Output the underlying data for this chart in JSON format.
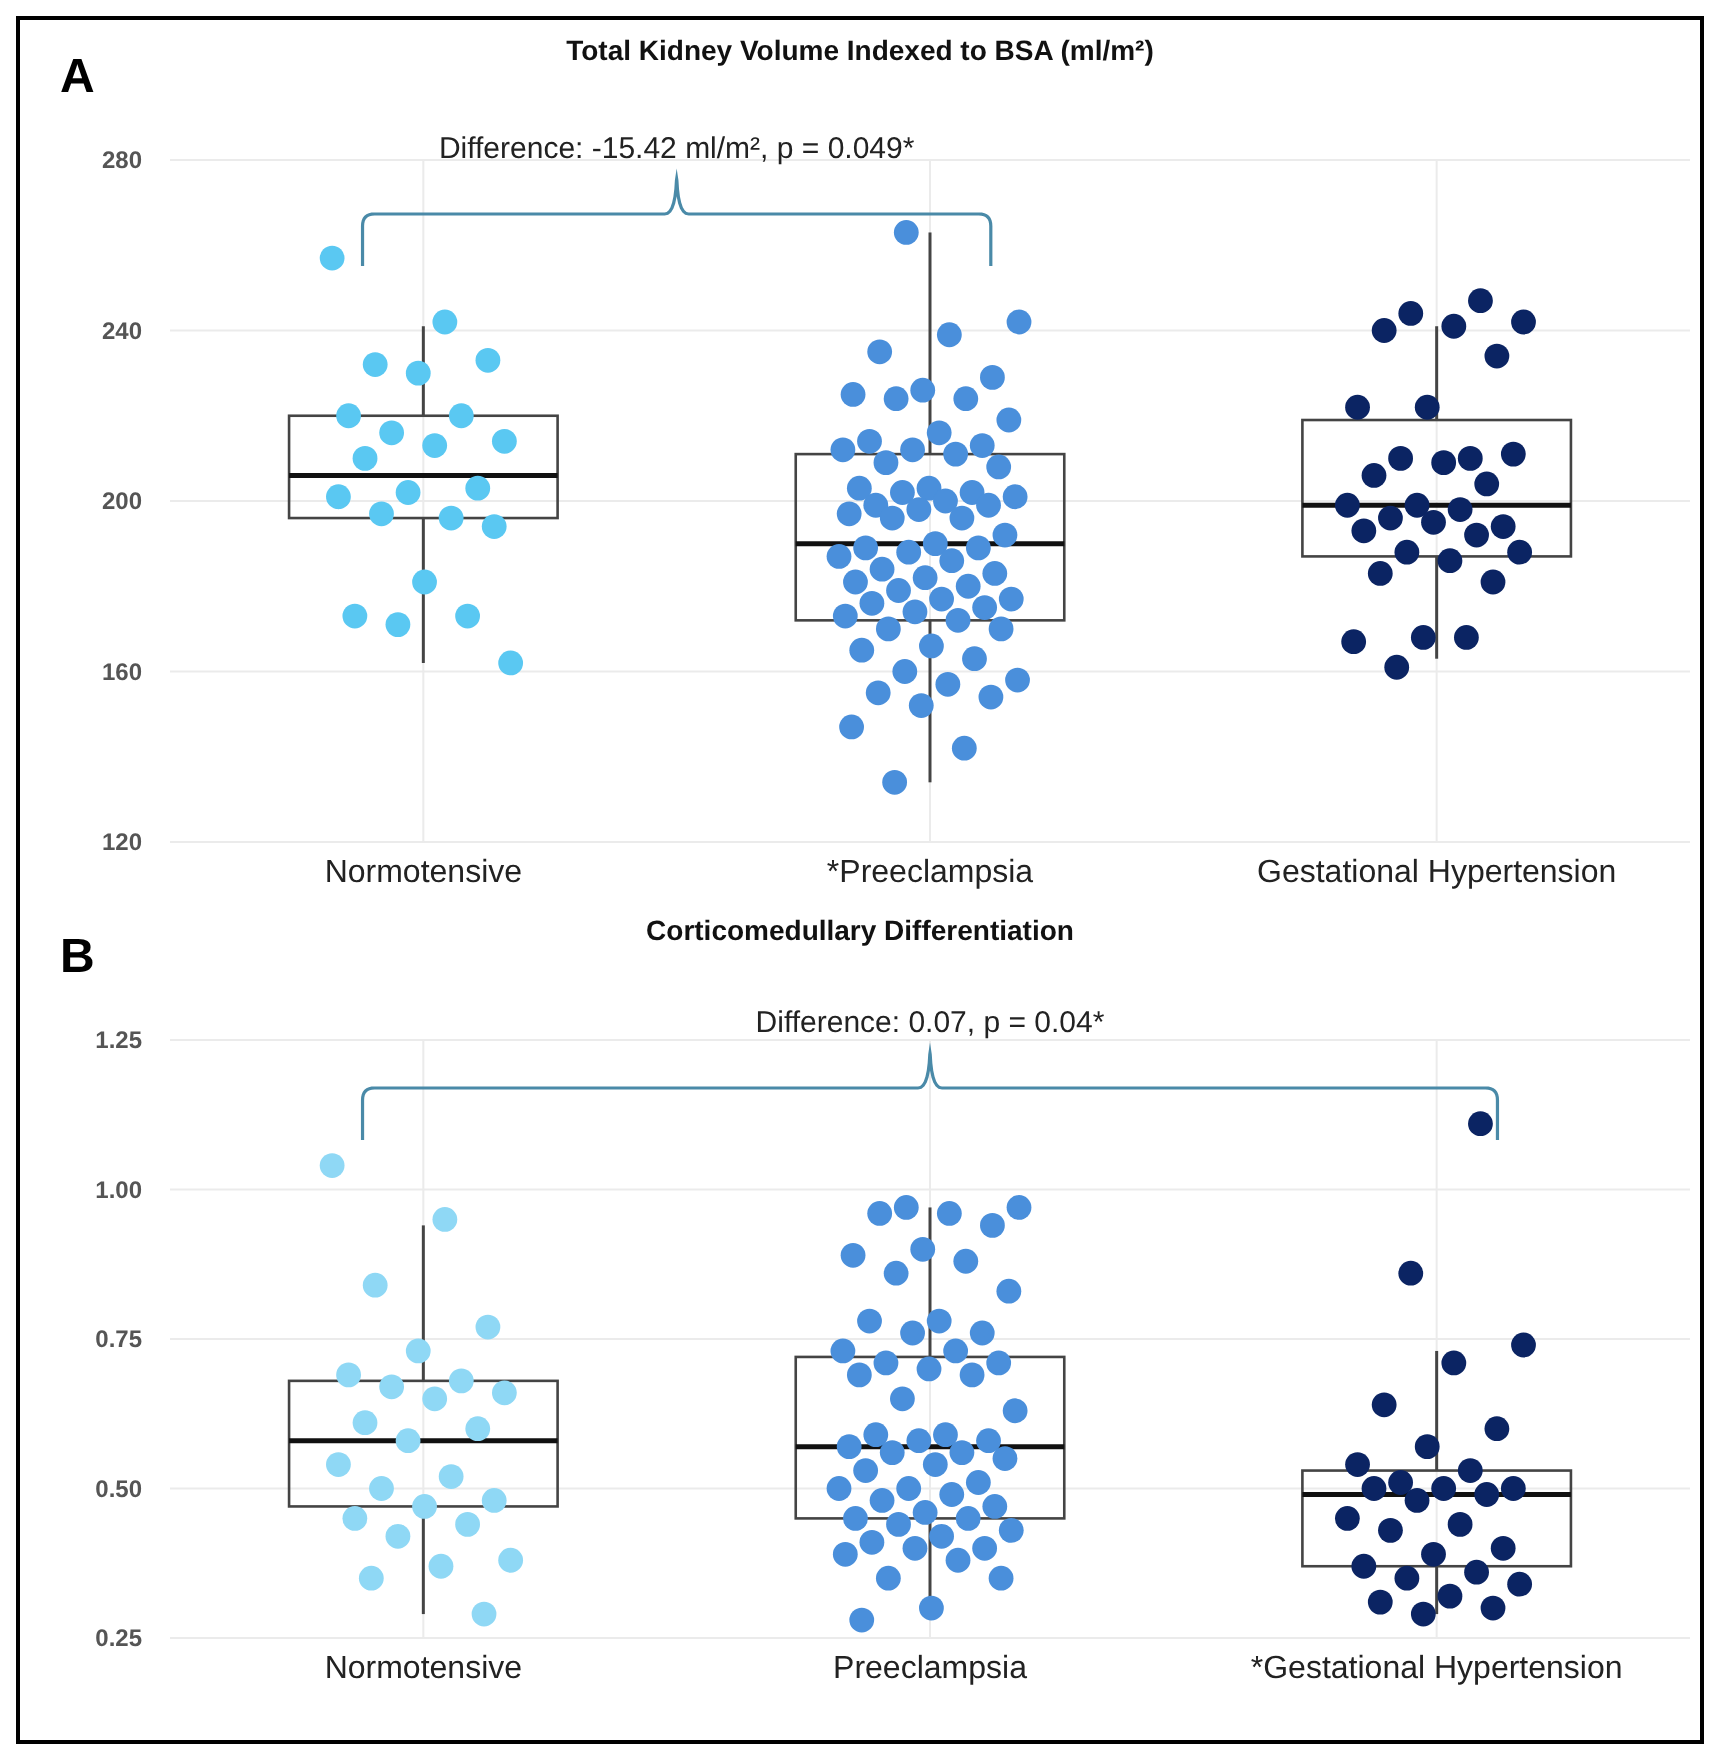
{
  "chart_data": [
    {
      "type": "box",
      "title": "Total Kidney Volume Indexed to BSA (ml/m²)",
      "categories": [
        "Normotensive",
        "*Preeclampsia",
        "Gestational Hypertension"
      ],
      "boxes": [
        {
          "low": 162,
          "q1": 196,
          "median": 206,
          "q3": 220,
          "high": 241
        },
        {
          "low": 134,
          "q1": 172,
          "median": 190,
          "q3": 211,
          "high": 263
        },
        {
          "low": 163,
          "q1": 187,
          "median": 199,
          "q3": 219,
          "high": 241
        }
      ],
      "series": [
        {
          "type": "scatter",
          "color": "#5ac8f2",
          "x": [
            "Normotensive",
            "Normotensive",
            "Normotensive",
            "Normotensive",
            "Normotensive",
            "Normotensive",
            "Normotensive",
            "Normotensive",
            "Normotensive",
            "Normotensive",
            "Normotensive",
            "Normotensive",
            "Normotensive",
            "Normotensive",
            "Normotensive",
            "Normotensive",
            "Normotensive",
            "Normotensive",
            "Normotensive",
            "Normotensive",
            "Normotensive",
            "Normotensive"
          ],
          "values": [
            257,
            242,
            232,
            233,
            230,
            220,
            220,
            216,
            214,
            213,
            210,
            203,
            202,
            201,
            196,
            197,
            194,
            181,
            173,
            173,
            171,
            162
          ]
        },
        {
          "type": "scatter",
          "color": "#4a8fdb",
          "x": [
            "*Preeclampsia",
            "*Preeclampsia",
            "*Preeclampsia",
            "*Preeclampsia",
            "*Preeclampsia",
            "*Preeclampsia",
            "*Preeclampsia",
            "*Preeclampsia",
            "*Preeclampsia",
            "*Preeclampsia",
            "*Preeclampsia",
            "*Preeclampsia",
            "*Preeclampsia",
            "*Preeclampsia",
            "*Preeclampsia",
            "*Preeclampsia",
            "*Preeclampsia",
            "*Preeclampsia",
            "*Preeclampsia",
            "*Preeclampsia",
            "*Preeclampsia",
            "*Preeclampsia",
            "*Preeclampsia",
            "*Preeclampsia",
            "*Preeclampsia",
            "*Preeclampsia",
            "*Preeclampsia",
            "*Preeclampsia",
            "*Preeclampsia",
            "*Preeclampsia",
            "*Preeclampsia",
            "*Preeclampsia",
            "*Preeclampsia",
            "*Preeclampsia",
            "*Preeclampsia",
            "*Preeclampsia",
            "*Preeclampsia",
            "*Preeclampsia",
            "*Preeclampsia",
            "*Preeclampsia",
            "*Preeclampsia",
            "*Preeclampsia",
            "*Preeclampsia",
            "*Preeclampsia",
            "*Preeclampsia",
            "*Preeclampsia",
            "*Preeclampsia",
            "*Preeclampsia",
            "*Preeclampsia",
            "*Preeclampsia",
            "*Preeclampsia",
            "*Preeclampsia",
            "*Preeclampsia",
            "*Preeclampsia",
            "*Preeclampsia",
            "*Preeclampsia",
            "*Preeclampsia",
            "*Preeclampsia",
            "*Preeclampsia",
            "*Preeclampsia",
            "*Preeclampsia",
            "*Preeclampsia",
            "*Preeclampsia",
            "*Preeclampsia"
          ],
          "values": [
            263,
            242,
            239,
            235,
            229,
            226,
            225,
            224,
            224,
            219,
            216,
            214,
            213,
            212,
            212,
            211,
            209,
            208,
            203,
            203,
            202,
            202,
            201,
            200,
            199,
            199,
            198,
            197,
            196,
            196,
            192,
            190,
            189,
            189,
            188,
            187,
            186,
            184,
            183,
            182,
            181,
            180,
            179,
            177,
            177,
            176,
            175,
            174,
            173,
            172,
            170,
            170,
            166,
            165,
            163,
            160,
            158,
            157,
            155,
            154,
            152,
            147,
            142,
            134
          ]
        },
        {
          "type": "scatter",
          "color": "#0b2463",
          "x": [
            "Gestational Hypertension",
            "Gestational Hypertension",
            "Gestational Hypertension",
            "Gestational Hypertension",
            "Gestational Hypertension",
            "Gestational Hypertension",
            "Gestational Hypertension",
            "Gestational Hypertension",
            "Gestational Hypertension",
            "Gestational Hypertension",
            "Gestational Hypertension",
            "Gestational Hypertension",
            "Gestational Hypertension",
            "Gestational Hypertension",
            "Gestational Hypertension",
            "Gestational Hypertension",
            "Gestational Hypertension",
            "Gestational Hypertension",
            "Gestational Hypertension",
            "Gestational Hypertension",
            "Gestational Hypertension",
            "Gestational Hypertension",
            "Gestational Hypertension",
            "Gestational Hypertension",
            "Gestational Hypertension",
            "Gestational Hypertension",
            "Gestational Hypertension",
            "Gestational Hypertension",
            "Gestational Hypertension",
            "Gestational Hypertension",
            "Gestational Hypertension"
          ],
          "values": [
            247,
            244,
            242,
            241,
            240,
            234,
            222,
            222,
            210,
            210,
            211,
            209,
            206,
            204,
            199,
            199,
            198,
            196,
            194,
            195,
            193,
            192,
            188,
            188,
            186,
            183,
            181,
            168,
            167,
            168,
            161
          ]
        }
      ],
      "ylim": [
        120,
        280
      ],
      "yticks": [
        120,
        160,
        200,
        240,
        280
      ],
      "grid": true,
      "annotations": [
        "A",
        "Difference: -15.42 ml/m², p = 0.049*"
      ]
    },
    {
      "type": "box",
      "title": "Corticomedullary Differentiation",
      "categories": [
        "Normotensive",
        "Preeclampsia",
        "*Gestational Hypertension"
      ],
      "boxes": [
        {
          "low": 0.29,
          "q1": 0.47,
          "median": 0.58,
          "q3": 0.68,
          "high": 0.94
        },
        {
          "low": 0.28,
          "q1": 0.45,
          "median": 0.57,
          "q3": 0.72,
          "high": 0.97
        },
        {
          "low": 0.29,
          "q1": 0.37,
          "median": 0.49,
          "q3": 0.53,
          "high": 0.73
        }
      ],
      "series": [
        {
          "type": "scatter",
          "color": "#8fd8f5",
          "x": [
            "Normotensive",
            "Normotensive",
            "Normotensive",
            "Normotensive",
            "Normotensive",
            "Normotensive",
            "Normotensive",
            "Normotensive",
            "Normotensive",
            "Normotensive",
            "Normotensive",
            "Normotensive",
            "Normotensive",
            "Normotensive",
            "Normotensive",
            "Normotensive",
            "Normotensive",
            "Normotensive",
            "Normotensive",
            "Normotensive",
            "Normotensive",
            "Normotensive",
            "Normotensive",
            "Normotensive",
            "Normotensive"
          ],
          "values": [
            1.04,
            0.95,
            0.84,
            0.77,
            0.73,
            0.69,
            0.68,
            0.67,
            0.66,
            0.65,
            0.61,
            0.6,
            0.58,
            0.54,
            0.52,
            0.5,
            0.48,
            0.47,
            0.45,
            0.44,
            0.42,
            0.38,
            0.37,
            0.35,
            0.29
          ]
        },
        {
          "type": "scatter",
          "color": "#4a8fdb",
          "x": [
            "Preeclampsia",
            "Preeclampsia",
            "Preeclampsia",
            "Preeclampsia",
            "Preeclampsia",
            "Preeclampsia",
            "Preeclampsia",
            "Preeclampsia",
            "Preeclampsia",
            "Preeclampsia",
            "Preeclampsia",
            "Preeclampsia",
            "Preeclampsia",
            "Preeclampsia",
            "Preeclampsia",
            "Preeclampsia",
            "Preeclampsia",
            "Preeclampsia",
            "Preeclampsia",
            "Preeclampsia",
            "Preeclampsia",
            "Preeclampsia",
            "Preeclampsia",
            "Preeclampsia",
            "Preeclampsia",
            "Preeclampsia",
            "Preeclampsia",
            "Preeclampsia",
            "Preeclampsia",
            "Preeclampsia",
            "Preeclampsia",
            "Preeclampsia",
            "Preeclampsia",
            "Preeclampsia",
            "Preeclampsia",
            "Preeclampsia",
            "Preeclampsia",
            "Preeclampsia",
            "Preeclampsia",
            "Preeclampsia",
            "Preeclampsia",
            "Preeclampsia",
            "Preeclampsia",
            "Preeclampsia",
            "Preeclampsia",
            "Preeclampsia",
            "Preeclampsia",
            "Preeclampsia",
            "Preeclampsia",
            "Preeclampsia",
            "Preeclampsia",
            "Preeclampsia",
            "Preeclampsia",
            "Preeclampsia"
          ],
          "values": [
            0.97,
            0.97,
            0.96,
            0.96,
            0.94,
            0.9,
            0.89,
            0.88,
            0.86,
            0.83,
            0.78,
            0.78,
            0.76,
            0.76,
            0.73,
            0.73,
            0.71,
            0.71,
            0.7,
            0.69,
            0.69,
            0.65,
            0.63,
            0.59,
            0.59,
            0.58,
            0.58,
            0.57,
            0.56,
            0.56,
            0.55,
            0.54,
            0.53,
            0.51,
            0.5,
            0.5,
            0.49,
            0.48,
            0.47,
            0.46,
            0.45,
            0.45,
            0.44,
            0.43,
            0.42,
            0.41,
            0.4,
            0.4,
            0.39,
            0.38,
            0.35,
            0.35,
            0.3,
            0.28
          ]
        },
        {
          "type": "scatter",
          "color": "#0b2463",
          "x": [
            "*Gestational Hypertension",
            "*Gestational Hypertension",
            "*Gestational Hypertension",
            "*Gestational Hypertension",
            "*Gestational Hypertension",
            "*Gestational Hypertension",
            "*Gestational Hypertension",
            "*Gestational Hypertension",
            "*Gestational Hypertension",
            "*Gestational Hypertension",
            "*Gestational Hypertension",
            "*Gestational Hypertension",
            "*Gestational Hypertension",
            "*Gestational Hypertension",
            "*Gestational Hypertension",
            "*Gestational Hypertension",
            "*Gestational Hypertension",
            "*Gestational Hypertension",
            "*Gestational Hypertension",
            "*Gestational Hypertension",
            "*Gestational Hypertension",
            "*Gestational Hypertension",
            "*Gestational Hypertension",
            "*Gestational Hypertension",
            "*Gestational Hypertension",
            "*Gestational Hypertension",
            "*Gestational Hypertension",
            "*Gestational Hypertension"
          ],
          "values": [
            1.11,
            0.86,
            0.74,
            0.71,
            0.64,
            0.6,
            0.57,
            0.54,
            0.53,
            0.51,
            0.5,
            0.5,
            0.5,
            0.49,
            0.48,
            0.45,
            0.44,
            0.43,
            0.4,
            0.39,
            0.37,
            0.36,
            0.35,
            0.34,
            0.32,
            0.31,
            0.3,
            0.29
          ]
        }
      ],
      "ylim": [
        0.25,
        1.25
      ],
      "yticks": [
        0.25,
        {
          "value": 0.5,
          "label": "0.50"
        },
        0.75,
        {
          "value": 1,
          "label": "1.00"
        },
        1.25
      ],
      "grid": true,
      "annotations": [
        "B",
        "Difference: 0.07, p = 0.04*"
      ]
    }
  ]
}
